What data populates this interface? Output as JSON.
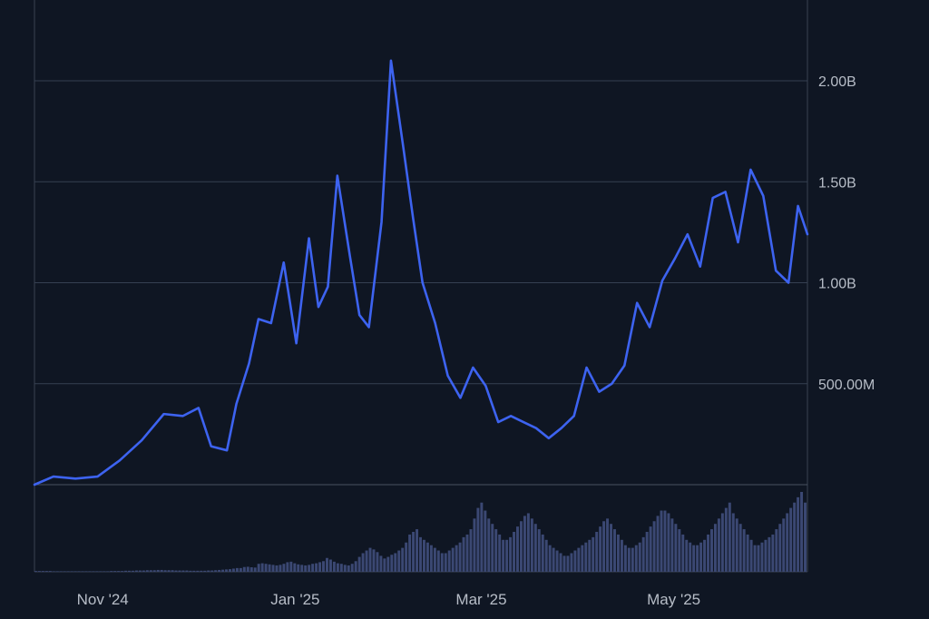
{
  "chart_data": {
    "type": "line",
    "title": "",
    "xlabel": "",
    "ylabel": "",
    "ylim": [
      0,
      2400000000
    ],
    "grid": true,
    "x_tick_labels": [
      "Nov '24",
      "Jan '25",
      "Mar '25",
      "May '25"
    ],
    "y_tick_labels": [
      {
        "value": 500000000,
        "label": "500.00M"
      },
      {
        "value": 1000000000,
        "label": "1.00B"
      },
      {
        "value": 1500000000,
        "label": "1.50B"
      },
      {
        "value": 2000000000,
        "label": "2.00B"
      }
    ],
    "series": [
      {
        "color": "#3d63f0",
        "x": [
          "2024-10-19",
          "2024-10-25",
          "2024-11-01",
          "2024-11-08",
          "2024-11-15",
          "2024-11-22",
          "2024-11-29",
          "2024-12-05",
          "2024-12-10",
          "2024-12-14",
          "2024-12-19",
          "2024-12-22",
          "2024-12-26",
          "2024-12-29",
          "2025-01-02",
          "2025-01-06",
          "2025-01-10",
          "2025-01-14",
          "2025-01-17",
          "2025-01-20",
          "2025-01-23",
          "2025-01-27",
          "2025-01-30",
          "2025-02-02",
          "2025-02-06",
          "2025-02-09",
          "2025-02-13",
          "2025-02-16",
          "2025-02-19",
          "2025-02-23",
          "2025-02-27",
          "2025-03-03",
          "2025-03-07",
          "2025-03-11",
          "2025-03-15",
          "2025-03-19",
          "2025-03-23",
          "2025-03-27",
          "2025-03-31",
          "2025-04-04",
          "2025-04-08",
          "2025-04-12",
          "2025-04-16",
          "2025-04-20",
          "2025-04-24",
          "2025-04-28",
          "2025-05-02",
          "2025-05-06",
          "2025-05-10",
          "2025-05-14",
          "2025-05-18",
          "2025-05-22",
          "2025-05-26",
          "2025-05-30",
          "2025-06-03",
          "2025-06-07",
          "2025-06-11",
          "2025-06-15",
          "2025-06-18",
          "2025-06-21"
        ],
        "values": [
          0,
          40000000,
          30000000,
          40000000,
          120000000,
          220000000,
          350000000,
          340000000,
          380000000,
          190000000,
          170000000,
          400000000,
          600000000,
          820000000,
          800000000,
          1100000000,
          700000000,
          1220000000,
          880000000,
          980000000,
          1530000000,
          1130000000,
          840000000,
          780000000,
          1300000000,
          2100000000,
          1660000000,
          1320000000,
          1000000000,
          800000000,
          540000000,
          430000000,
          580000000,
          490000000,
          310000000,
          340000000,
          310000000,
          280000000,
          230000000,
          280000000,
          340000000,
          580000000,
          460000000,
          500000000,
          590000000,
          900000000,
          780000000,
          1010000000,
          1120000000,
          1240000000,
          1080000000,
          1420000000,
          1450000000,
          1200000000,
          1560000000,
          1430000000,
          1060000000,
          1000000000,
          1380000000,
          1240000000
        ]
      }
    ],
    "volume": [
      3,
      3,
      3,
      3,
      3,
      2,
      2,
      2,
      2,
      2,
      2,
      2,
      2,
      2,
      2,
      2,
      2,
      2,
      2,
      2,
      2,
      3,
      3,
      3,
      3,
      4,
      4,
      4,
      5,
      5,
      5,
      6,
      6,
      6,
      7,
      7,
      6,
      6,
      6,
      5,
      5,
      5,
      5,
      4,
      4,
      4,
      4,
      4,
      5,
      5,
      6,
      7,
      8,
      9,
      10,
      12,
      14,
      14,
      18,
      19,
      17,
      16,
      30,
      32,
      30,
      28,
      26,
      24,
      26,
      30,
      36,
      38,
      32,
      28,
      26,
      24,
      26,
      30,
      32,
      36,
      40,
      52,
      46,
      38,
      32,
      30,
      26,
      24,
      30,
      40,
      56,
      70,
      80,
      90,
      84,
      74,
      60,
      50,
      56,
      64,
      70,
      80,
      90,
      110,
      140,
      150,
      160,
      130,
      120,
      110,
      100,
      90,
      80,
      70,
      70,
      80,
      90,
      100,
      110,
      130,
      140,
      160,
      200,
      240,
      260,
      230,
      200,
      180,
      160,
      140,
      120,
      120,
      130,
      150,
      170,
      190,
      210,
      220,
      200,
      180,
      160,
      140,
      120,
      100,
      90,
      80,
      70,
      60,
      60,
      70,
      80,
      90,
      100,
      110,
      120,
      130,
      150,
      170,
      190,
      200,
      180,
      160,
      140,
      120,
      100,
      90,
      90,
      100,
      110,
      130,
      150,
      170,
      190,
      210,
      230,
      230,
      220,
      200,
      180,
      160,
      140,
      120,
      110,
      100,
      100,
      110,
      120,
      140,
      160,
      180,
      200,
      220,
      240,
      260,
      220,
      200,
      180,
      160,
      140,
      120,
      100,
      100,
      110,
      120,
      130,
      140,
      160,
      180,
      200,
      220,
      240,
      260,
      280,
      300,
      260
    ]
  }
}
